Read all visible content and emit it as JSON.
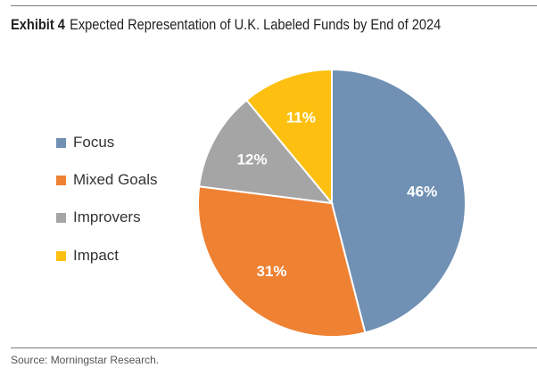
{
  "exhibit": "Exhibit 4",
  "title": "Expected Representation of U.K. Labeled Funds by End of 2024",
  "source": "Source: Morningstar Research.",
  "chart_data": {
    "type": "pie",
    "title": "Expected Representation of U.K. Labeled Funds by End of 2024",
    "legend_position": "left",
    "slices": [
      {
        "name": "Focus",
        "value": 46,
        "label": "46%",
        "color": "#7090b4"
      },
      {
        "name": "Mixed Goals",
        "value": 31,
        "label": "31%",
        "color": "#ef8133"
      },
      {
        "name": "Improvers",
        "value": 12,
        "label": "12%",
        "color": "#a5a5a5"
      },
      {
        "name": "Impact",
        "value": 11,
        "label": "11%",
        "color": "#fdc010"
      }
    ]
  }
}
